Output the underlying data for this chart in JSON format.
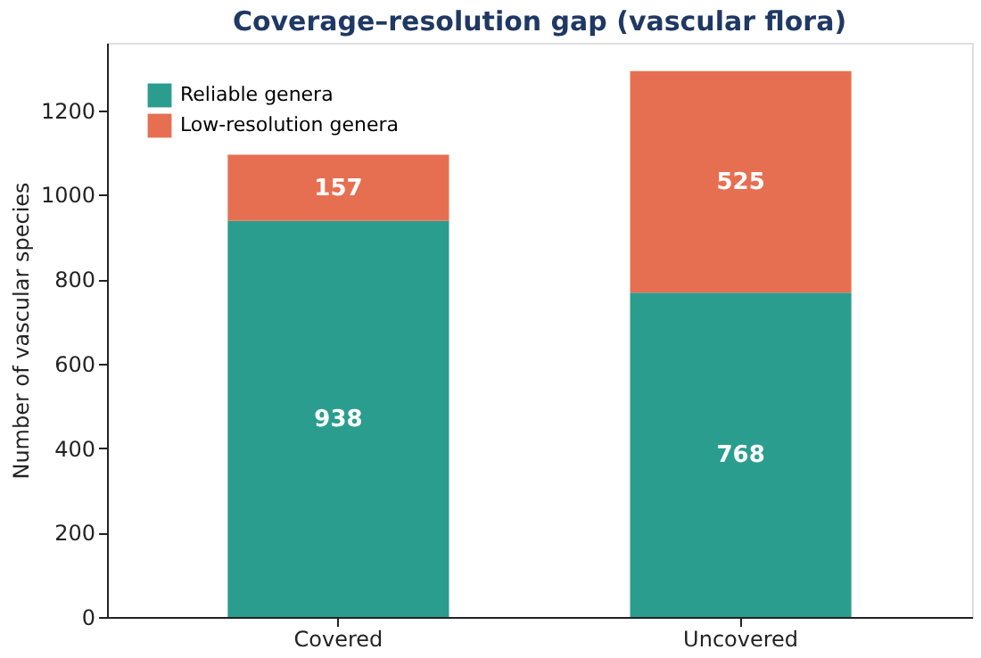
{
  "chart_data": {
    "type": "bar",
    "title": "Coverage–resolution gap (vascular flora)",
    "ylabel": "Number of vascular species",
    "categories": [
      "Covered",
      "Uncovered"
    ],
    "stacked": true,
    "data_labels": true,
    "legend": "top left",
    "grid": false,
    "ylim": [
      0,
      1360
    ],
    "yticks": [
      0,
      200,
      400,
      600,
      800,
      1000,
      1200
    ],
    "series": [
      {
        "name": "Reliable genera",
        "color": "#2a9d8f",
        "values": [
          938,
          768
        ]
      },
      {
        "name": "Low-resolution genera",
        "color": "#e76f51",
        "values": [
          157,
          525
        ]
      }
    ]
  }
}
